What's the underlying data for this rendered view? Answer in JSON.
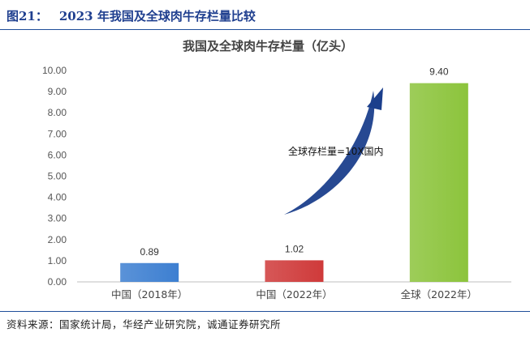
{
  "figure": {
    "number": "图21：",
    "title": "2023 年我国及全球肉牛存栏量比较",
    "source": "资料来源：国家统计局，华经产业研究院，诚通证券研究所"
  },
  "chart_data": {
    "type": "bar",
    "title": "我国及全球肉牛存栏量（亿头）",
    "categories": [
      "中国（2018年）",
      "中国（2022年）",
      "全球（2022年）"
    ],
    "values": [
      0.89,
      1.02,
      9.4
    ],
    "data_labels": [
      "0.89",
      "1.02",
      "9.40"
    ],
    "colors": [
      "#3d7fd1",
      "#cf3a3a",
      "#8cc43c"
    ],
    "ylim": [
      0,
      10
    ],
    "yticks": [
      "0.00",
      "1.00",
      "2.00",
      "3.00",
      "4.00",
      "5.00",
      "6.00",
      "7.00",
      "8.00",
      "9.00",
      "10.00"
    ],
    "grid": false,
    "annotation": "全球存栏量=10X国内",
    "arrow_color": "#1b3f8c"
  }
}
